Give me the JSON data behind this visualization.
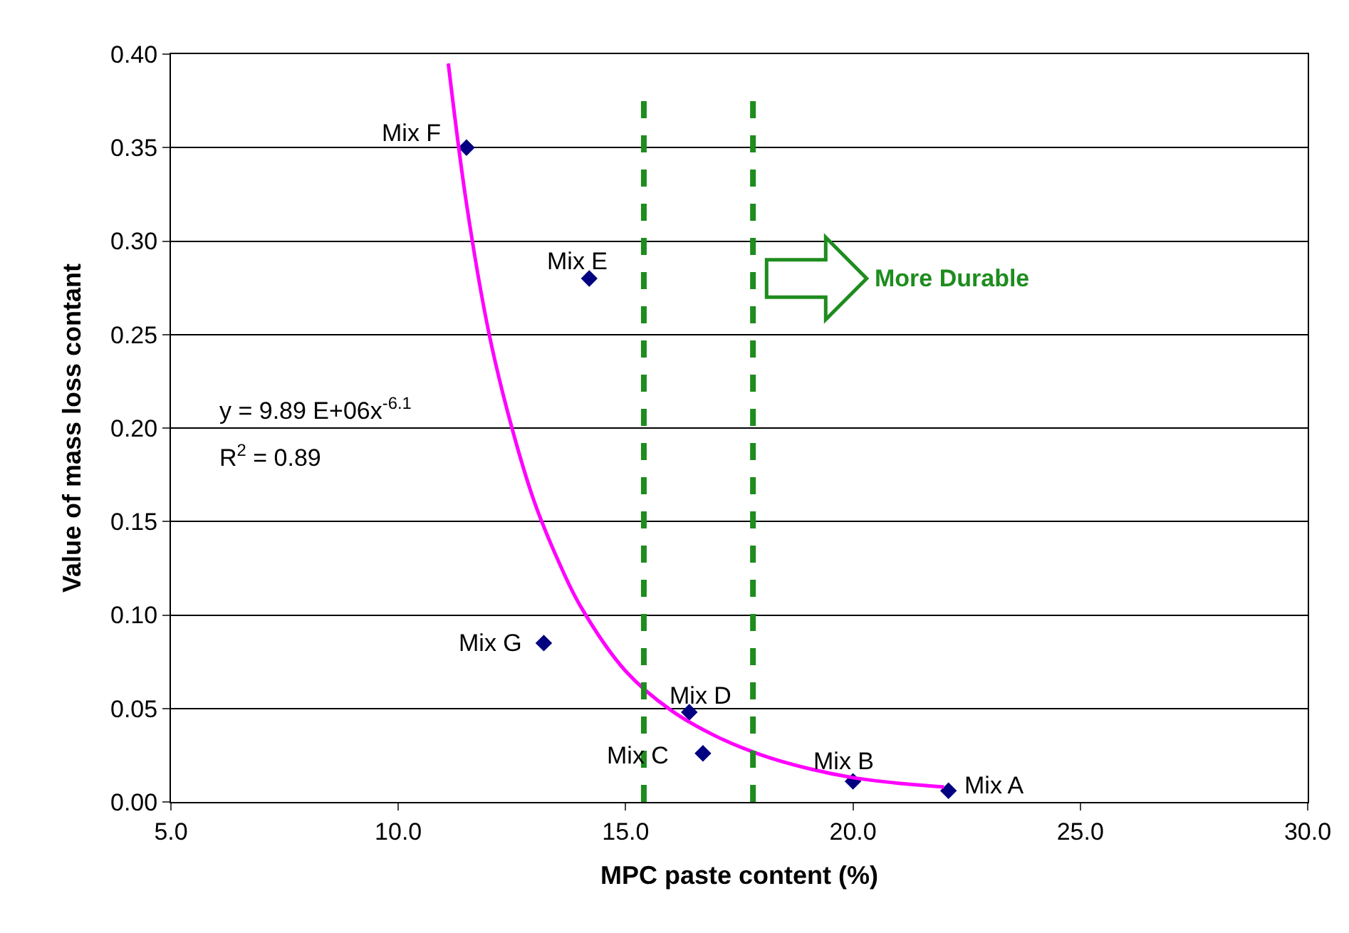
{
  "chart_data": {
    "type": "scatter",
    "xlabel": "MPC paste content (%)",
    "ylabel": "Value of mass loss contant",
    "xlim": [
      5,
      30
    ],
    "xticks": [
      {
        "value": 5,
        "label": "5.0"
      },
      {
        "value": 10,
        "label": "10.0"
      },
      {
        "value": 15,
        "label": "15.0"
      },
      {
        "value": 20,
        "label": "20.0"
      },
      {
        "value": 25,
        "label": "25.0"
      },
      {
        "value": 30,
        "label": "30.0"
      }
    ],
    "ylim": [
      0,
      0.4
    ],
    "yticks": [
      {
        "value": 0,
        "label": "0.00"
      },
      {
        "value": 0.05,
        "label": "0.05"
      },
      {
        "value": 0.1,
        "label": "0.10"
      },
      {
        "value": 0.15,
        "label": "0.15"
      },
      {
        "value": 0.2,
        "label": "0.20"
      },
      {
        "value": 0.25,
        "label": "0.25"
      },
      {
        "value": 0.3,
        "label": "0.30"
      },
      {
        "value": 0.35,
        "label": "0.35"
      },
      {
        "value": 0.4,
        "label": "0.40"
      }
    ],
    "grid": "y",
    "series": [
      {
        "marker": "diamond",
        "color": "#000080",
        "x": [
          11.5,
          14.2,
          13.2,
          16.4,
          16.7,
          20.0,
          22.1
        ],
        "values": [
          0.35,
          0.28,
          0.085,
          0.048,
          0.026,
          0.011,
          0.006
        ]
      },
      {
        "type": "line",
        "color": "#ff00ff",
        "x": [
          11.1,
          11.5,
          12,
          12.5,
          13,
          13.5,
          14,
          15,
          16,
          17,
          18,
          19,
          20,
          21,
          22
        ],
        "values": [
          0.395,
          0.32,
          0.25,
          0.2,
          0.16,
          0.13,
          0.105,
          0.07,
          0.049,
          0.035,
          0.025,
          0.018,
          0.013,
          0.01,
          0.008
        ]
      }
    ],
    "ref_lines": [
      {
        "axis": "x",
        "value": 15.4,
        "color": "#1e8c1e",
        "line_style": "dashed"
      },
      {
        "axis": "x",
        "value": 17.8,
        "color": "#1e8c1e",
        "line_style": "dashed"
      }
    ],
    "annotations": [
      {
        "text": "Mix F",
        "x": 11.5,
        "y": 0.35
      },
      {
        "text": "Mix E",
        "x": 14.2,
        "y": 0.28
      },
      {
        "text": "Mix G",
        "x": 13.2,
        "y": 0.085
      },
      {
        "text": "Mix D",
        "x": 16.4,
        "y": 0.048
      },
      {
        "text": "Mix C",
        "x": 16.7,
        "y": 0.026
      },
      {
        "text": "Mix B",
        "x": 20.0,
        "y": 0.011
      },
      {
        "text": "Mix A",
        "x": 22.1,
        "y": 0.006
      },
      "y = 9.89 E+06x$^{-6.1}$",
      "R$^{2}$ = 0.89",
      "More Durable"
    ]
  }
}
